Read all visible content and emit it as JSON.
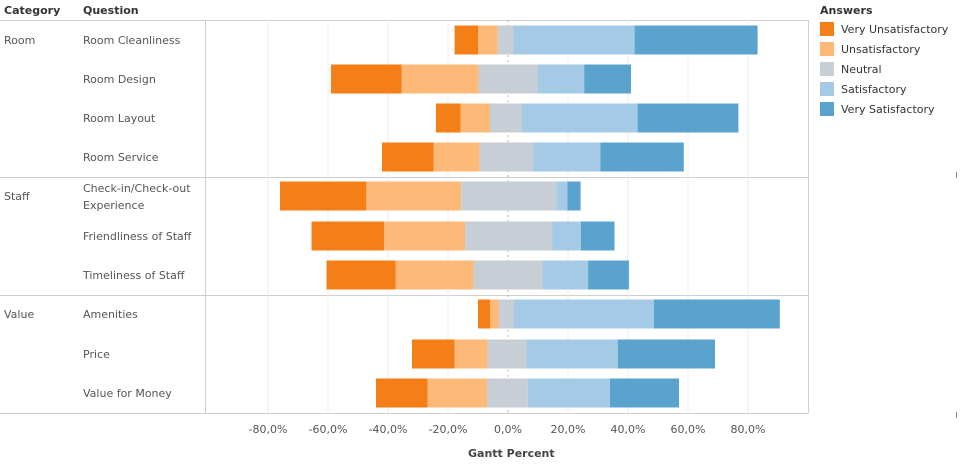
{
  "headers": {
    "category": "Category",
    "question": "Question"
  },
  "x_axis_title": "Gantt Percent",
  "legend": {
    "title": "Answers",
    "items": [
      {
        "label": "Very Unsatisfactory",
        "color": "#f47f17"
      },
      {
        "label": "Unsatisfactory",
        "color": "#fdb978"
      },
      {
        "label": "Neutral",
        "color": "#c8ced6"
      },
      {
        "label": "Satisfactory",
        "color": "#a5cae6"
      },
      {
        "label": "Very Satisfactory",
        "color": "#5ba3cf"
      }
    ]
  },
  "chart_data": {
    "type": "bar",
    "subtype": "diverging-stacked-horizontal",
    "xlabel": "Gantt Percent",
    "xlim": [
      -0.9,
      1.0
    ],
    "xticks": [
      -0.8,
      -0.6,
      -0.4,
      -0.2,
      0.0,
      0.2,
      0.4,
      0.6,
      0.8
    ],
    "xtick_labels": [
      "-80,0%",
      "-60,0%",
      "-40,0%",
      "-20,0%",
      "0,0%",
      "20,0%",
      "40,0%",
      "60,0%",
      "80,0%"
    ],
    "series_names": [
      "Very Unsatisfactory",
      "Unsatisfactory",
      "Neutral",
      "Satisfactory",
      "Very Satisfactory"
    ],
    "groups": [
      {
        "category": "Room",
        "rows": [
          {
            "question": "Room Cleanliness",
            "start": -0.178,
            "values": [
              0.078,
              0.066,
              0.052,
              0.404,
              0.41
            ]
          },
          {
            "question": "Room Design",
            "start": -0.59,
            "values": [
              0.236,
              0.256,
              0.196,
              0.156,
              0.156
            ]
          },
          {
            "question": "Room Layout",
            "start": -0.24,
            "values": [
              0.082,
              0.098,
              0.104,
              0.388,
              0.336
            ]
          },
          {
            "question": "Room Service",
            "start": -0.42,
            "values": [
              0.172,
              0.154,
              0.178,
              0.224,
              0.278
            ]
          }
        ]
      },
      {
        "category": "Staff",
        "rows": [
          {
            "question": "Check-in/Check-out Experience",
            "start": -0.76,
            "values": [
              0.288,
              0.316,
              0.318,
              0.036,
              0.044
            ]
          },
          {
            "question": "Friendliness of Staff",
            "start": -0.655,
            "values": [
              0.242,
              0.27,
              0.29,
              0.096,
              0.112
            ]
          },
          {
            "question": "Timeliness of Staff",
            "start": -0.605,
            "values": [
              0.23,
              0.26,
              0.23,
              0.152,
              0.136
            ]
          }
        ]
      },
      {
        "category": "Value",
        "rows": [
          {
            "question": "Amenities",
            "start": -0.1,
            "values": [
              0.04,
              0.03,
              0.05,
              0.466,
              0.42
            ]
          },
          {
            "question": "Price",
            "start": -0.32,
            "values": [
              0.142,
              0.11,
              0.13,
              0.304,
              0.324
            ]
          },
          {
            "question": "Value for Money",
            "start": -0.44,
            "values": [
              0.172,
              0.198,
              0.136,
              0.274,
              0.23
            ]
          }
        ]
      }
    ]
  }
}
